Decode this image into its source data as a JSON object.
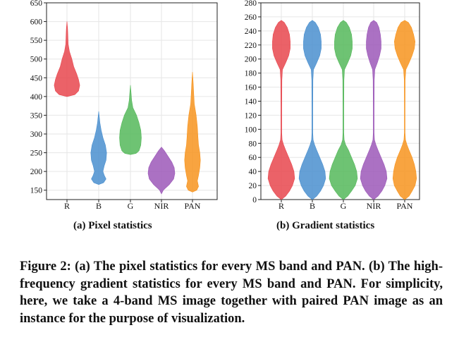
{
  "figure": {
    "subcaption_a": "(a) Pixel statistics",
    "subcaption_b": "(b) Gradient statistics",
    "caption": "Figure 2: (a) The pixel statistics for every MS band and PAN. (b) The high-frequency gradient statistics for every MS band and PAN. For simplicity, here, we take a 4-band MS image together with paired PAN image as an instance for the purpose of visualization."
  },
  "chart_data": [
    {
      "type": "violin",
      "title": "(a) Pixel statistics",
      "xlabel": "",
      "ylabel": "",
      "categories": [
        "R",
        "B",
        "G",
        "NIR",
        "PAN"
      ],
      "colors": [
        "#e8464e",
        "#4a8fcf",
        "#55b85a",
        "#9c58b8",
        "#f7941e"
      ],
      "ylim": [
        125,
        650
      ],
      "yticks": [
        150,
        200,
        250,
        300,
        350,
        400,
        450,
        500,
        550,
        600,
        650
      ],
      "grid": true,
      "violins": [
        {
          "name": "R",
          "min": 400,
          "max": 600,
          "profile": [
            [
              400,
              0
            ],
            [
              405,
              13
            ],
            [
              415,
              19
            ],
            [
              430,
              21
            ],
            [
              445,
              19
            ],
            [
              460,
              16
            ],
            [
              480,
              11
            ],
            [
              500,
              8
            ],
            [
              520,
              4
            ],
            [
              540,
              2
            ],
            [
              560,
              1.5
            ],
            [
              580,
              1
            ],
            [
              600,
              0
            ]
          ]
        },
        {
          "name": "B",
          "min": 165,
          "max": 360,
          "profile": [
            [
              165,
              0
            ],
            [
              170,
              8
            ],
            [
              180,
              12
            ],
            [
              190,
              9
            ],
            [
              200,
              7
            ],
            [
              215,
              9
            ],
            [
              230,
              12
            ],
            [
              250,
              13
            ],
            [
              270,
              11
            ],
            [
              290,
              7
            ],
            [
              310,
              4
            ],
            [
              330,
              2
            ],
            [
              345,
              1
            ],
            [
              360,
              0
            ]
          ]
        },
        {
          "name": "G",
          "min": 245,
          "max": 430,
          "profile": [
            [
              245,
              0
            ],
            [
              248,
              9
            ],
            [
              255,
              14
            ],
            [
              270,
              17
            ],
            [
              290,
              18
            ],
            [
              310,
              17
            ],
            [
              330,
              14
            ],
            [
              350,
              10
            ],
            [
              370,
              4
            ],
            [
              390,
              2
            ],
            [
              410,
              1
            ],
            [
              430,
              0
            ]
          ]
        },
        {
          "name": "NIR",
          "min": 140,
          "max": 265,
          "profile": [
            [
              140,
              0
            ],
            [
              150,
              3
            ],
            [
              165,
              13
            ],
            [
              180,
              20
            ],
            [
              195,
              22
            ],
            [
              210,
              21
            ],
            [
              225,
              17
            ],
            [
              240,
              11
            ],
            [
              255,
              5
            ],
            [
              265,
              0
            ]
          ]
        },
        {
          "name": "PAN",
          "min": 145,
          "max": 465,
          "profile": [
            [
              145,
              0
            ],
            [
              150,
              7
            ],
            [
              160,
              10
            ],
            [
              175,
              8
            ],
            [
              190,
              10
            ],
            [
              210,
              12
            ],
            [
              230,
              13
            ],
            [
              250,
              12
            ],
            [
              270,
              10
            ],
            [
              290,
              9
            ],
            [
              320,
              8
            ],
            [
              350,
              6
            ],
            [
              380,
              3
            ],
            [
              410,
              2
            ],
            [
              440,
              1
            ],
            [
              465,
              0
            ]
          ]
        }
      ]
    },
    {
      "type": "violin",
      "title": "(b) Gradient statistics",
      "xlabel": "",
      "ylabel": "",
      "categories": [
        "R",
        "B",
        "G",
        "NIR",
        "PAN"
      ],
      "colors": [
        "#e8464e",
        "#4a8fcf",
        "#55b85a",
        "#9c58b8",
        "#f7941e"
      ],
      "ylim": [
        0,
        280
      ],
      "yticks": [
        0,
        20,
        40,
        60,
        80,
        100,
        120,
        140,
        160,
        180,
        200,
        220,
        240,
        260,
        280
      ],
      "grid": true,
      "violins": [
        {
          "name": "R",
          "min": 0,
          "max": 255,
          "profile": [
            [
              0,
              0
            ],
            [
              5,
              6
            ],
            [
              12,
              11
            ],
            [
              20,
              15
            ],
            [
              30,
              18
            ],
            [
              40,
              17
            ],
            [
              50,
              14
            ],
            [
              60,
              10
            ],
            [
              70,
              6
            ],
            [
              78,
              3
            ],
            [
              85,
              1
            ],
            [
              95,
              0.6
            ],
            [
              130,
              0.6
            ],
            [
              170,
              0.8
            ],
            [
              185,
              1.5
            ],
            [
              195,
              6
            ],
            [
              205,
              10
            ],
            [
              215,
              12
            ],
            [
              225,
              12
            ],
            [
              235,
              11
            ],
            [
              245,
              8
            ],
            [
              252,
              4
            ],
            [
              255,
              0
            ]
          ]
        },
        {
          "name": "B",
          "min": 0,
          "max": 255,
          "profile": [
            [
              0,
              0
            ],
            [
              5,
              6
            ],
            [
              12,
              11
            ],
            [
              20,
              15
            ],
            [
              30,
              18
            ],
            [
              40,
              17
            ],
            [
              50,
              14
            ],
            [
              60,
              10
            ],
            [
              70,
              6
            ],
            [
              78,
              3
            ],
            [
              85,
              1
            ],
            [
              95,
              0.6
            ],
            [
              130,
              0.6
            ],
            [
              170,
              0.8
            ],
            [
              185,
              1.5
            ],
            [
              195,
              6
            ],
            [
              205,
              10
            ],
            [
              215,
              12
            ],
            [
              225,
              12
            ],
            [
              235,
              11
            ],
            [
              245,
              8
            ],
            [
              252,
              4
            ],
            [
              255,
              0
            ]
          ]
        },
        {
          "name": "G",
          "min": 0,
          "max": 255,
          "profile": [
            [
              0,
              0
            ],
            [
              5,
              6
            ],
            [
              12,
              11
            ],
            [
              20,
              16
            ],
            [
              30,
              19
            ],
            [
              40,
              18
            ],
            [
              50,
              15
            ],
            [
              60,
              11
            ],
            [
              70,
              7
            ],
            [
              78,
              3
            ],
            [
              85,
              1
            ],
            [
              95,
              0.6
            ],
            [
              130,
              0.6
            ],
            [
              170,
              0.8
            ],
            [
              185,
              1.5
            ],
            [
              195,
              6
            ],
            [
              205,
              10
            ],
            [
              215,
              12
            ],
            [
              225,
              12
            ],
            [
              235,
              11
            ],
            [
              245,
              8
            ],
            [
              252,
              4
            ],
            [
              255,
              0
            ]
          ]
        },
        {
          "name": "NIR",
          "min": 0,
          "max": 255,
          "profile": [
            [
              0,
              0
            ],
            [
              5,
              6
            ],
            [
              12,
              11
            ],
            [
              20,
              15
            ],
            [
              30,
              18
            ],
            [
              40,
              17
            ],
            [
              50,
              14
            ],
            [
              60,
              10
            ],
            [
              70,
              6
            ],
            [
              78,
              3
            ],
            [
              85,
              1
            ],
            [
              95,
              0.6
            ],
            [
              130,
              0.6
            ],
            [
              170,
              0.8
            ],
            [
              185,
              1.5
            ],
            [
              195,
              5
            ],
            [
              205,
              8
            ],
            [
              215,
              10
            ],
            [
              225,
              10
            ],
            [
              235,
              9
            ],
            [
              245,
              7
            ],
            [
              252,
              4
            ],
            [
              255,
              0
            ]
          ]
        },
        {
          "name": "PAN",
          "min": 0,
          "max": 255,
          "profile": [
            [
              0,
              0
            ],
            [
              5,
              6
            ],
            [
              12,
              10
            ],
            [
              20,
              14
            ],
            [
              30,
              16
            ],
            [
              40,
              15
            ],
            [
              50,
              13
            ],
            [
              60,
              10
            ],
            [
              70,
              6
            ],
            [
              78,
              3
            ],
            [
              85,
              1
            ],
            [
              95,
              0.5
            ],
            [
              130,
              0.5
            ],
            [
              170,
              0.6
            ],
            [
              185,
              1.5
            ],
            [
              195,
              6
            ],
            [
              205,
              10
            ],
            [
              215,
              13
            ],
            [
              225,
              14
            ],
            [
              235,
              12
            ],
            [
              245,
              9
            ],
            [
              252,
              5
            ],
            [
              255,
              0
            ]
          ]
        }
      ]
    }
  ]
}
